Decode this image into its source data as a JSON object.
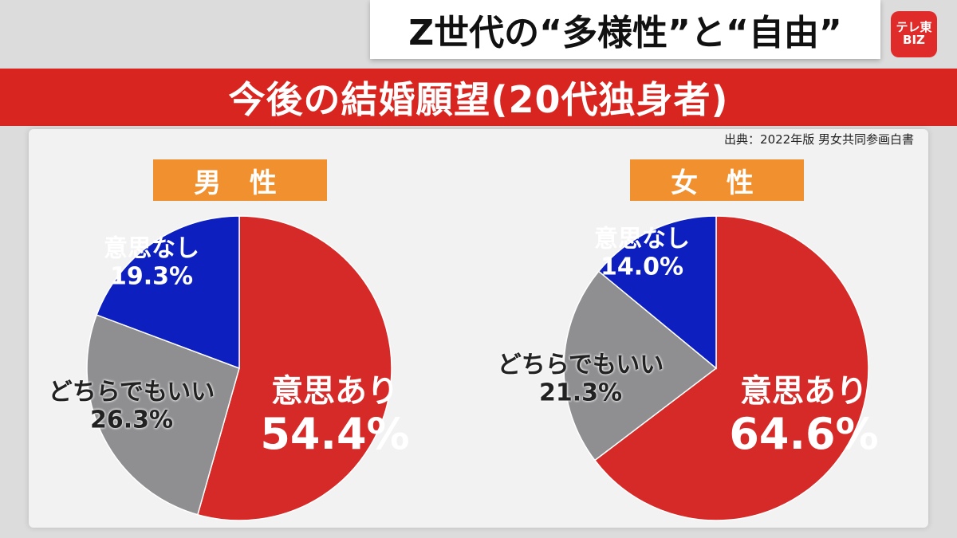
{
  "header": {
    "program_title": "Z世代の“多様性”と“自由”",
    "logo_line1": "テレ東",
    "logo_line2": "BIZ"
  },
  "banner": {
    "title": "今後の結婚願望(20代独身者)"
  },
  "source": "出典：2022年版 男女共同参画白書",
  "colors": {
    "intend": "#d62a28",
    "indifferent": "#8f8f92",
    "no_intend": "#0d1fbf",
    "header_box": "#f0902e",
    "banner": "#d8251f",
    "logo": "#e02b2b"
  },
  "chart_data": [
    {
      "type": "pie",
      "title": "男 性",
      "slices": [
        {
          "label": "意思あり",
          "value": 54.4,
          "display": "54.4%"
        },
        {
          "label": "どちらでもいい",
          "value": 26.3,
          "display": "26.3%"
        },
        {
          "label": "意思なし",
          "value": 19.3,
          "display": "19.3%"
        }
      ]
    },
    {
      "type": "pie",
      "title": "女 性",
      "slices": [
        {
          "label": "意思あり",
          "value": 64.6,
          "display": "64.6%"
        },
        {
          "label": "どちらでもいい",
          "value": 21.3,
          "display": "21.3%"
        },
        {
          "label": "意思なし",
          "value": 14.0,
          "display": "14.0%"
        }
      ]
    }
  ]
}
